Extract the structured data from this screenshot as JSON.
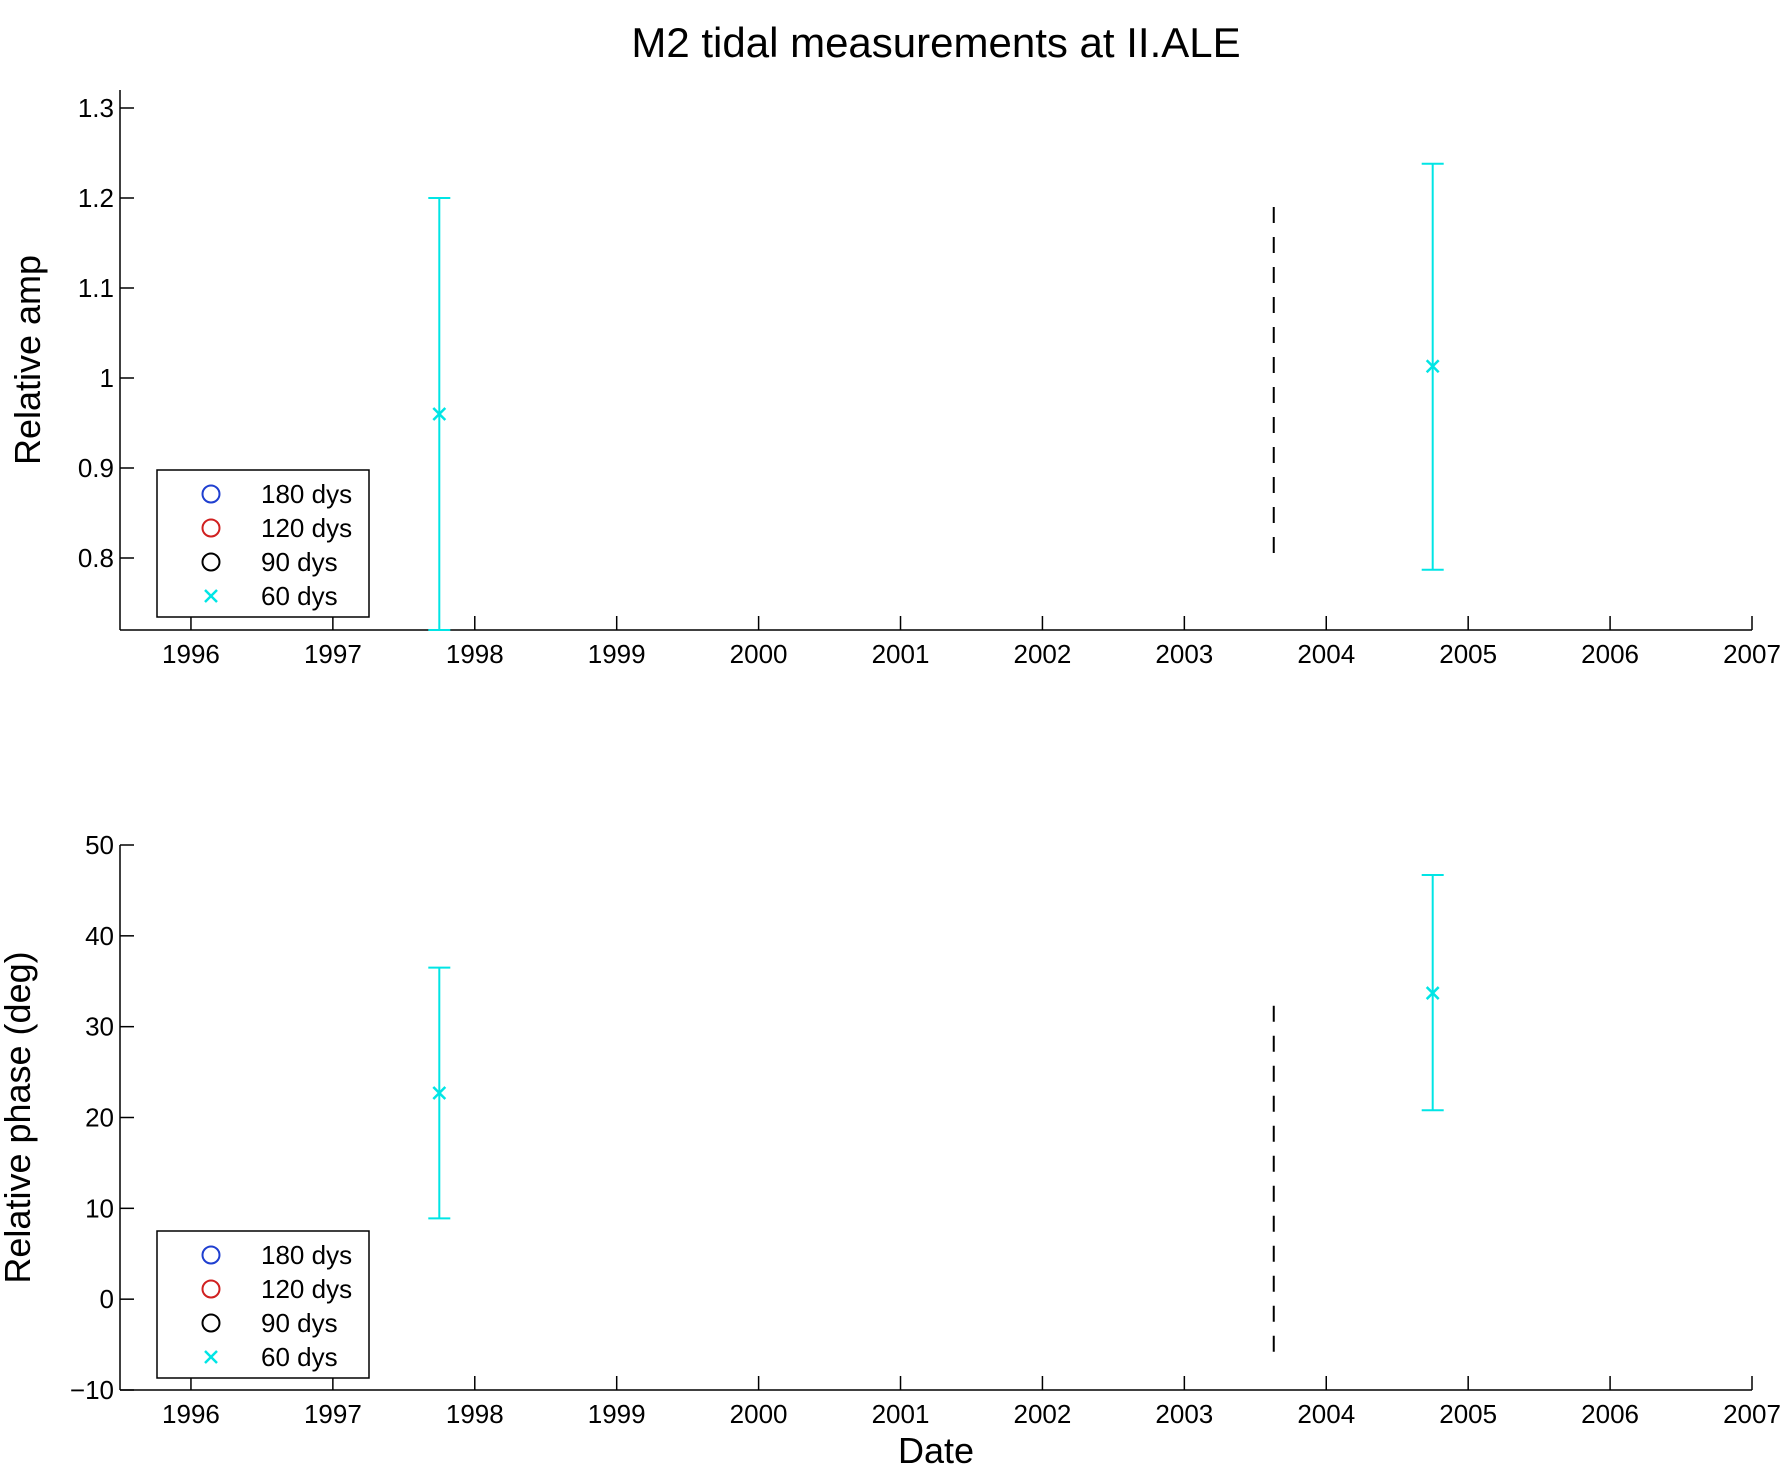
{
  "title": "M2 tidal measurements at II.ALE",
  "colors": {
    "series_180": "#1f3fd0",
    "series_120": "#d02020",
    "series_90": "#000000",
    "series_60": "#00e5e5",
    "marker_line": "#000000"
  },
  "chart_data": [
    {
      "type": "scatter",
      "title": "M2 tidal measurements at II.ALE",
      "xlabel": "",
      "ylabel": "Relative amp",
      "x_unit": "year",
      "xlim": [
        1995.5,
        2007.0
      ],
      "ylim": [
        0.72,
        1.32
      ],
      "xticks": [
        1996,
        1997,
        1998,
        1999,
        2000,
        2001,
        2002,
        2003,
        2004,
        2005,
        2006,
        2007
      ],
      "yticks": [
        0.8,
        0.9,
        1.0,
        1.1,
        1.2,
        1.3
      ],
      "ytick_labels": [
        "0.8",
        "0.9",
        "1",
        "1.1",
        "1.2",
        "1.3"
      ],
      "legend": {
        "placement": "bottom-left",
        "entries": [
          {
            "label": "180 dys",
            "marker": "circle",
            "color": "#1f3fd0"
          },
          {
            "label": "120 dys",
            "marker": "circle",
            "color": "#d02020"
          },
          {
            "label": "90 dys",
            "marker": "circle",
            "color": "#000000"
          },
          {
            "label": "60 dys",
            "marker": "x",
            "color": "#00e5e5"
          }
        ]
      },
      "series": [
        {
          "name": "180 dys",
          "points": []
        },
        {
          "name": "120 dys",
          "points": []
        },
        {
          "name": "90 dys",
          "points": []
        },
        {
          "name": "60 dys",
          "points": [
            {
              "x": 1997.75,
              "y": 0.96,
              "ylow": 0.72,
              "yhigh": 1.2
            },
            {
              "x": 2004.75,
              "y": 1.013,
              "ylow": 0.787,
              "yhigh": 1.238
            }
          ]
        }
      ],
      "vline": {
        "x": 2003.63,
        "ymin": 0.8,
        "ymax": 1.19,
        "style": "dashed"
      }
    },
    {
      "type": "scatter",
      "title": "",
      "xlabel": "Date",
      "ylabel": "Relative phase (deg)",
      "x_unit": "year",
      "xlim": [
        1995.5,
        2007.0
      ],
      "ylim": [
        -10,
        50
      ],
      "xticks": [
        1996,
        1997,
        1998,
        1999,
        2000,
        2001,
        2002,
        2003,
        2004,
        2005,
        2006,
        2007
      ],
      "yticks": [
        -10,
        0,
        10,
        20,
        30,
        40,
        50
      ],
      "ytick_labels": [
        "−10",
        "0",
        "10",
        "20",
        "30",
        "40",
        "50"
      ],
      "legend": {
        "placement": "bottom-left",
        "entries": [
          {
            "label": "180 dys",
            "marker": "circle",
            "color": "#1f3fd0"
          },
          {
            "label": "120 dys",
            "marker": "circle",
            "color": "#d02020"
          },
          {
            "label": "90 dys",
            "marker": "circle",
            "color": "#000000"
          },
          {
            "label": "60 dys",
            "marker": "x",
            "color": "#00e5e5"
          }
        ]
      },
      "series": [
        {
          "name": "180 dys",
          "points": []
        },
        {
          "name": "120 dys",
          "points": []
        },
        {
          "name": "90 dys",
          "points": []
        },
        {
          "name": "60 dys",
          "points": [
            {
              "x": 1997.75,
              "y": 22.7,
              "ylow": 8.9,
              "yhigh": 36.5
            },
            {
              "x": 2004.75,
              "y": 33.7,
              "ylow": 20.8,
              "yhigh": 46.7
            }
          ]
        }
      ],
      "vline": {
        "x": 2003.63,
        "ymin": -7,
        "ymax": 32.3,
        "style": "dashed"
      }
    }
  ]
}
